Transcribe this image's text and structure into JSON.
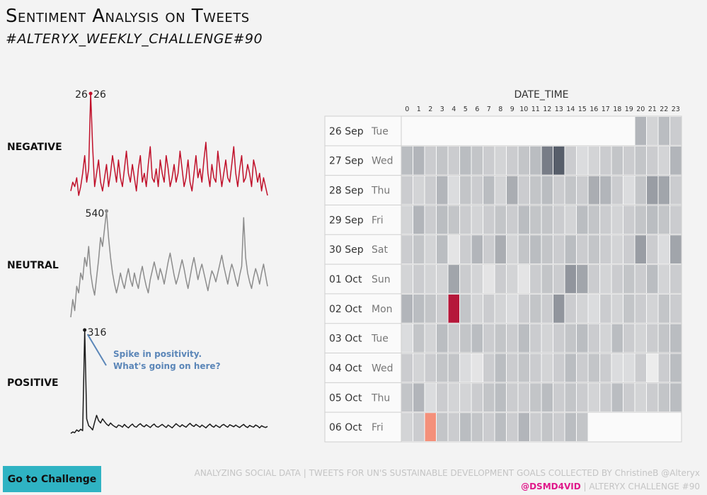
{
  "header": {
    "title": "Sentiment Analysis on Tweets",
    "subtitle": "#ALTERYX_WEEKLY_CHALLENGE#90"
  },
  "labels": {
    "negative": "NEGATIVE",
    "neutral": "NEUTRAL",
    "positive": "POSITIVE"
  },
  "annotation": {
    "line1": "Spike in positivity.",
    "line2": "What's going on here?"
  },
  "button": {
    "label": "Go to Challenge"
  },
  "footer": {
    "line1": "ANALYZING SOCIAL DATA | TWEETS FOR UN'S SUSTAINABLE DEVELOPMENT GOALS COLLECTED BY ChristineB @Alteryx",
    "handle": "@DSMD4VID",
    "line2_rest": " | ALTERYX CHALLENGE #90"
  },
  "colors": {
    "negative": "#c0102a",
    "neutral": "#8c8c8c",
    "positive": "#1a1a1a",
    "annotation": "#5b86b8",
    "button": "#2fb3c3"
  },
  "chart_data": [
    {
      "type": "line",
      "name": "negative",
      "peak_label": "26",
      "values": [
        4,
        6,
        5,
        7,
        3,
        5,
        8,
        12,
        6,
        9,
        26,
        14,
        5,
        8,
        11,
        6,
        4,
        7,
        10,
        5,
        8,
        12,
        9,
        6,
        11,
        7,
        5,
        9,
        13,
        8,
        6,
        10,
        7,
        4,
        9,
        12,
        6,
        8,
        5,
        10,
        14,
        7,
        6,
        9,
        5,
        11,
        8,
        6,
        12,
        9,
        5,
        7,
        10,
        6,
        8,
        13,
        9,
        5,
        7,
        11,
        6,
        4,
        8,
        12,
        7,
        9,
        6,
        11,
        15,
        8,
        5,
        10,
        7,
        6,
        13,
        9,
        5,
        8,
        11,
        7,
        6,
        10,
        14,
        8,
        5,
        9,
        12,
        6,
        7,
        10,
        8,
        5,
        11,
        9,
        6,
        8,
        4,
        7,
        5,
        3
      ]
    },
    {
      "type": "line",
      "name": "neutral",
      "peak_label": "540",
      "values": [
        60,
        140,
        90,
        200,
        170,
        260,
        230,
        330,
        290,
        380,
        260,
        200,
        160,
        240,
        320,
        420,
        380,
        460,
        540,
        420,
        330,
        260,
        210,
        170,
        210,
        260,
        220,
        190,
        240,
        280,
        230,
        200,
        260,
        220,
        190,
        250,
        290,
        240,
        200,
        170,
        230,
        270,
        310,
        270,
        230,
        280,
        250,
        210,
        260,
        310,
        350,
        300,
        250,
        210,
        240,
        280,
        320,
        280,
        230,
        190,
        240,
        290,
        330,
        280,
        230,
        270,
        300,
        260,
        220,
        180,
        230,
        270,
        250,
        220,
        260,
        300,
        340,
        290,
        250,
        210,
        260,
        300,
        270,
        230,
        200,
        250,
        290,
        510,
        330,
        260,
        220,
        190,
        240,
        280,
        250,
        210,
        260,
        300,
        250,
        200
      ]
    },
    {
      "type": "line",
      "name": "positive",
      "peak_label": "316",
      "values": [
        18,
        22,
        20,
        28,
        24,
        30,
        26,
        316,
        60,
        40,
        35,
        28,
        50,
        70,
        55,
        48,
        60,
        52,
        45,
        40,
        48,
        42,
        38,
        35,
        42,
        40,
        36,
        44,
        38,
        34,
        40,
        45,
        38,
        36,
        42,
        46,
        40,
        37,
        43,
        39,
        35,
        41,
        45,
        38,
        36,
        40,
        44,
        39,
        35,
        42,
        38,
        34,
        40,
        46,
        41,
        37,
        43,
        39,
        36,
        42,
        47,
        41,
        38,
        44,
        40,
        36,
        42,
        38,
        34,
        40,
        45,
        39,
        36,
        42,
        38,
        35,
        41,
        44,
        39,
        36,
        43,
        40,
        37,
        42,
        38,
        35,
        40,
        44,
        38,
        35,
        41,
        38,
        36,
        42,
        39,
        34,
        40,
        37,
        35,
        38
      ]
    },
    {
      "type": "heatmap",
      "title": "DATE_TIME",
      "x_categories": [
        "0",
        "1",
        "2",
        "3",
        "4",
        "5",
        "6",
        "7",
        "8",
        "9",
        "10",
        "11",
        "12",
        "13",
        "14",
        "15",
        "16",
        "17",
        "18",
        "19",
        "20",
        "21",
        "22",
        "23"
      ],
      "row_dates": [
        "26 Sep",
        "27 Sep",
        "28 Sep",
        "29 Sep",
        "30 Sep",
        "01 Oct",
        "02 Oct",
        "03 Oct",
        "04 Oct",
        "05 Oct",
        "06 Oct"
      ],
      "row_days": [
        "Tue",
        "Wed",
        "Thu",
        "Fri",
        "Sat",
        "Sun",
        "Mon",
        "Tue",
        "Wed",
        "Thu",
        "Fri"
      ],
      "value_range": [
        -1,
        1
      ],
      "values": [
        [
          null,
          null,
          null,
          null,
          null,
          null,
          null,
          null,
          null,
          null,
          null,
          null,
          null,
          null,
          null,
          null,
          null,
          null,
          null,
          null,
          -0.35,
          -0.15,
          -0.3,
          -0.2
        ],
        [
          -0.3,
          -0.35,
          -0.2,
          -0.25,
          -0.2,
          -0.3,
          -0.25,
          -0.2,
          -0.15,
          -0.2,
          -0.25,
          -0.3,
          -0.7,
          -0.9,
          -0.2,
          -0.1,
          -0.15,
          -0.2,
          -0.25,
          -0.2,
          -0.25,
          -0.2,
          -0.15,
          -0.35
        ],
        [
          -0.2,
          -0.15,
          -0.2,
          -0.35,
          -0.1,
          -0.25,
          -0.2,
          -0.3,
          -0.15,
          -0.4,
          -0.2,
          -0.25,
          -0.3,
          -0.2,
          -0.25,
          -0.2,
          -0.4,
          -0.35,
          -0.2,
          -0.1,
          -0.25,
          -0.5,
          -0.45,
          -0.2
        ],
        [
          -0.15,
          -0.35,
          -0.2,
          -0.3,
          -0.25,
          -0.2,
          -0.15,
          -0.2,
          -0.25,
          -0.2,
          -0.3,
          -0.25,
          -0.25,
          -0.2,
          -0.15,
          -0.3,
          -0.25,
          -0.2,
          -0.15,
          -0.2,
          -0.25,
          -0.3,
          -0.25,
          -0.2
        ],
        [
          -0.2,
          -0.25,
          -0.15,
          -0.3,
          -0.05,
          -0.2,
          -0.35,
          -0.2,
          -0.4,
          -0.15,
          -0.25,
          -0.3,
          -0.25,
          -0.2,
          -0.3,
          -0.2,
          -0.25,
          -0.2,
          -0.15,
          -0.2,
          -0.5,
          -0.2,
          -0.1,
          -0.45
        ],
        [
          -0.15,
          -0.2,
          -0.15,
          -0.15,
          -0.45,
          -0.2,
          -0.15,
          -0.05,
          -0.2,
          -0.15,
          -0.05,
          -0.2,
          -0.25,
          -0.2,
          -0.55,
          -0.45,
          -0.2,
          -0.15,
          -0.2,
          -0.25,
          -0.2,
          -0.3,
          -0.15,
          -0.2
        ],
        [
          -0.35,
          -0.3,
          -0.25,
          -0.2,
          0.95,
          -0.25,
          -0.15,
          -0.2,
          -0.15,
          -0.1,
          -0.2,
          -0.25,
          -0.2,
          -0.55,
          -0.2,
          -0.15,
          -0.1,
          -0.2,
          -0.15,
          -0.25,
          -0.2,
          -0.15,
          -0.25,
          -0.2
        ],
        [
          -0.1,
          -0.25,
          -0.15,
          -0.3,
          -0.2,
          -0.25,
          -0.3,
          -0.2,
          -0.25,
          -0.2,
          -0.3,
          -0.2,
          -0.15,
          -0.2,
          -0.25,
          -0.3,
          -0.2,
          -0.15,
          -0.3,
          -0.2,
          -0.15,
          -0.2,
          -0.25,
          -0.3
        ],
        [
          -0.2,
          -0.15,
          -0.2,
          -0.25,
          -0.25,
          -0.1,
          -0.05,
          -0.2,
          -0.3,
          -0.2,
          -0.25,
          -0.2,
          -0.15,
          -0.2,
          -0.3,
          -0.2,
          -0.25,
          -0.2,
          -0.1,
          -0.1,
          -0.2,
          0.0,
          -0.2,
          -0.3
        ],
        [
          -0.25,
          -0.35,
          -0.1,
          -0.2,
          -0.15,
          -0.15,
          -0.2,
          -0.25,
          -0.3,
          -0.2,
          -0.2,
          -0.25,
          -0.3,
          -0.2,
          -0.25,
          -0.2,
          -0.15,
          -0.2,
          -0.3,
          -0.2,
          -0.15,
          -0.2,
          -0.25,
          -0.3
        ],
        [
          -0.15,
          -0.2,
          0.55,
          -0.25,
          -0.2,
          -0.3,
          -0.25,
          -0.2,
          -0.3,
          -0.2,
          -0.35,
          -0.2,
          -0.25,
          -0.2,
          -0.3,
          -0.25,
          null,
          null,
          null,
          null,
          null,
          null,
          null,
          null
        ]
      ]
    }
  ]
}
